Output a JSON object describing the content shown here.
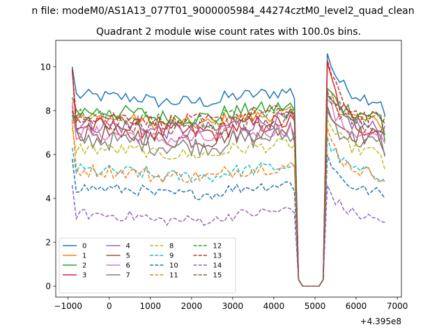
{
  "chart_data": {
    "type": "line",
    "suptitle": "n file: modeM0/AS1A13_077T01_9000005984_44274cztM0_level2_quad_clean",
    "title": "Quadrant 2 module wise count rates with 100.0s bins.",
    "offset_text": "+4.395e8",
    "xlabel": "",
    "ylabel": "",
    "xlim": [
      -1300,
      7100
    ],
    "ylim": [
      -0.5,
      11.2
    ],
    "xticks": [
      -1000,
      0,
      1000,
      2000,
      3000,
      4000,
      5000,
      6000,
      7000
    ],
    "xtick_labels": [
      "−1000",
      "0",
      "1000",
      "2000",
      "3000",
      "4000",
      "5000",
      "6000",
      "7000"
    ],
    "yticks": [
      0,
      2,
      4,
      6,
      8,
      10
    ],
    "ytick_labels": [
      "0",
      "2",
      "4",
      "6",
      "8",
      "10"
    ],
    "legend_position": "lower-left",
    "legend_columns": 4,
    "series": [
      {
        "name": "0",
        "color": "#1f77b4",
        "dash": "solid",
        "base": 8.7,
        "noise": 0.3,
        "start": 10.0,
        "post": 10.6,
        "end": 7.8
      },
      {
        "name": "1",
        "color": "#ff7f0e",
        "dash": "solid",
        "base": 7.7,
        "noise": 0.3,
        "start": 7.4,
        "post": 9.0,
        "end": 7.0
      },
      {
        "name": "2",
        "color": "#2ca02c",
        "dash": "solid",
        "base": 8.0,
        "noise": 0.35,
        "start": 8.6,
        "post": 9.0,
        "end": 6.6
      },
      {
        "name": "3",
        "color": "#d62728",
        "dash": "solid",
        "base": 7.3,
        "noise": 0.45,
        "start": 9.9,
        "post": 10.2,
        "end": 6.9
      },
      {
        "name": "4",
        "color": "#9467bd",
        "dash": "solid",
        "base": 7.4,
        "noise": 0.4,
        "start": 8.2,
        "post": 8.7,
        "end": 7.3
      },
      {
        "name": "5",
        "color": "#8c564b",
        "dash": "solid",
        "base": 7.0,
        "noise": 0.45,
        "start": 7.8,
        "post": 8.2,
        "end": 6.0
      },
      {
        "name": "6",
        "color": "#e377c2",
        "dash": "solid",
        "base": 7.0,
        "noise": 0.35,
        "start": 8.4,
        "post": 8.5,
        "end": 6.5
      },
      {
        "name": "7",
        "color": "#7f7f7f",
        "dash": "solid",
        "base": 6.7,
        "noise": 0.45,
        "start": 8.0,
        "post": 8.0,
        "end": 5.9
      },
      {
        "name": "8",
        "color": "#bcbd22",
        "dash": "dashed",
        "base": 6.3,
        "noise": 0.3,
        "start": 7.2,
        "post": 7.6,
        "end": 5.3
      },
      {
        "name": "9",
        "color": "#17becf",
        "dash": "dashed",
        "base": 5.3,
        "noise": 0.3,
        "start": 6.3,
        "post": 6.8,
        "end": 4.9
      },
      {
        "name": "10",
        "color": "#1f77b4",
        "dash": "dashed",
        "base": 4.5,
        "noise": 0.25,
        "start": 5.8,
        "post": 6.0,
        "end": 4.0
      },
      {
        "name": "11",
        "color": "#ff7f0e",
        "dash": "dashed",
        "base": 5.3,
        "noise": 0.3,
        "start": 7.6,
        "post": 7.2,
        "end": 4.8
      },
      {
        "name": "12",
        "color": "#2ca02c",
        "dash": "dashed",
        "base": 7.8,
        "noise": 0.35,
        "start": 8.0,
        "post": 8.8,
        "end": 6.9
      },
      {
        "name": "13",
        "color": "#d62728",
        "dash": "dashed",
        "base": 7.8,
        "noise": 0.35,
        "start": 9.8,
        "post": 10.3,
        "end": 7.4
      },
      {
        "name": "14",
        "color": "#9467bd",
        "dash": "dashed",
        "base": 3.3,
        "noise": 0.25,
        "start": 4.6,
        "post": 4.6,
        "end": 2.9
      },
      {
        "name": "15",
        "color": "#8c564b",
        "dash": "dashed",
        "base": 7.5,
        "noise": 0.4,
        "start": 8.0,
        "post": 8.9,
        "end": 7.8
      }
    ]
  }
}
